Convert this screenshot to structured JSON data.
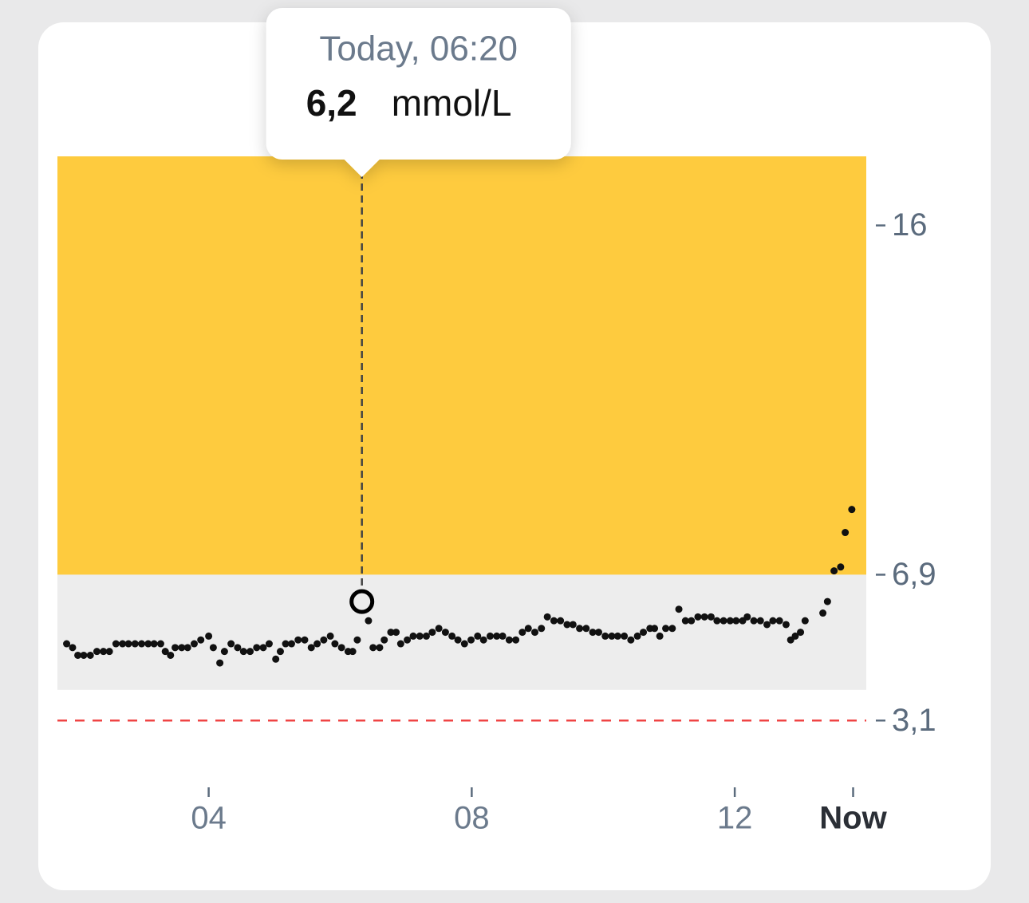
{
  "chart_data": {
    "type": "scatter",
    "color": "#111111",
    "xlim": [
      1.7,
      14.0
    ],
    "ylim": [
      1.9,
      17.8
    ],
    "xticks": [
      {
        "value": 4,
        "label": "04"
      },
      {
        "value": 8,
        "label": "08"
      },
      12,
      {
        "value": 13.8,
        "label": "Now"
      }
    ],
    "yticks": [
      16,
      {
        "value": 6.9,
        "label": "6,9"
      },
      {
        "value": 3.1,
        "label": "3,1"
      }
    ],
    "ranges": [
      {
        "from": 6.9,
        "to": 17.8,
        "color": "#fecb3e"
      },
      {
        "from": 3.9,
        "to": 6.9,
        "color": "#ededed"
      }
    ],
    "threshold": {
      "value": 3.1,
      "color": "#ef4444"
    },
    "highlight": {
      "label": "Today, 06:20",
      "x": 6.33,
      "value": 6.2,
      "value_label": "6,2",
      "unit": "mmol/L"
    },
    "x": [
      1.84,
      1.93,
      2.01,
      2.1,
      2.2,
      2.3,
      2.4,
      2.49,
      2.59,
      2.69,
      2.78,
      2.88,
      2.98,
      3.08,
      3.17,
      3.27,
      3.34,
      3.42,
      3.49,
      3.59,
      3.68,
      3.78,
      3.88,
      4.0,
      4.07,
      4.17,
      4.24,
      4.34,
      4.44,
      4.53,
      4.63,
      4.73,
      4.83,
      4.92,
      5.02,
      5.09,
      5.17,
      5.26,
      5.36,
      5.46,
      5.56,
      5.65,
      5.75,
      5.85,
      5.92,
      6.02,
      6.12,
      6.19,
      6.26,
      6.43,
      6.5,
      6.6,
      6.67,
      6.77,
      6.85,
      6.92,
      7.02,
      7.11,
      7.21,
      7.31,
      7.4,
      7.5,
      7.6,
      7.7,
      7.79,
      7.89,
      7.99,
      8.09,
      8.18,
      8.28,
      8.38,
      8.47,
      8.57,
      8.67,
      8.77,
      8.86,
      8.96,
      9.06,
      9.15,
      9.25,
      9.35,
      9.45,
      9.54,
      9.64,
      9.74,
      9.84,
      9.93,
      10.03,
      10.13,
      10.22,
      10.32,
      10.42,
      10.52,
      10.61,
      10.71,
      10.78,
      10.86,
      10.95,
      11.05,
      11.15,
      11.25,
      11.34,
      11.44,
      11.54,
      11.64,
      11.73,
      11.83,
      11.93,
      12.02,
      12.12,
      12.19,
      12.29,
      12.39,
      12.49,
      12.58,
      12.68,
      12.78,
      12.85,
      12.92,
      13.0,
      13.07,
      13.34,
      13.41,
      13.51,
      13.61,
      13.68,
      13.78
    ],
    "values": [
      5.1,
      5.0,
      4.8,
      4.8,
      4.8,
      4.9,
      4.9,
      4.9,
      5.1,
      5.1,
      5.1,
      5.1,
      5.1,
      5.1,
      5.1,
      5.1,
      4.9,
      4.8,
      5.0,
      5.0,
      5.0,
      5.1,
      5.2,
      5.3,
      5.0,
      4.6,
      4.9,
      5.1,
      5.0,
      4.9,
      4.9,
      5.0,
      5.0,
      5.1,
      4.7,
      4.9,
      5.1,
      5.1,
      5.2,
      5.2,
      5.0,
      5.1,
      5.2,
      5.3,
      5.1,
      5.0,
      4.9,
      4.9,
      5.2,
      5.7,
      5.0,
      5.0,
      5.2,
      5.4,
      5.4,
      5.1,
      5.2,
      5.3,
      5.3,
      5.3,
      5.4,
      5.5,
      5.4,
      5.3,
      5.2,
      5.1,
      5.2,
      5.3,
      5.2,
      5.3,
      5.3,
      5.3,
      5.2,
      5.2,
      5.4,
      5.5,
      5.4,
      5.5,
      5.8,
      5.7,
      5.7,
      5.6,
      5.6,
      5.5,
      5.5,
      5.4,
      5.4,
      5.3,
      5.3,
      5.3,
      5.3,
      5.2,
      5.3,
      5.4,
      5.5,
      5.5,
      5.3,
      5.5,
      5.5,
      6.0,
      5.7,
      5.7,
      5.8,
      5.8,
      5.8,
      5.7,
      5.7,
      5.7,
      5.7,
      5.7,
      5.8,
      5.7,
      5.7,
      5.6,
      5.7,
      5.7,
      5.6,
      5.2,
      5.3,
      5.4,
      5.7,
      5.9,
      6.2,
      7.0,
      7.1,
      8.0,
      8.6
    ]
  }
}
